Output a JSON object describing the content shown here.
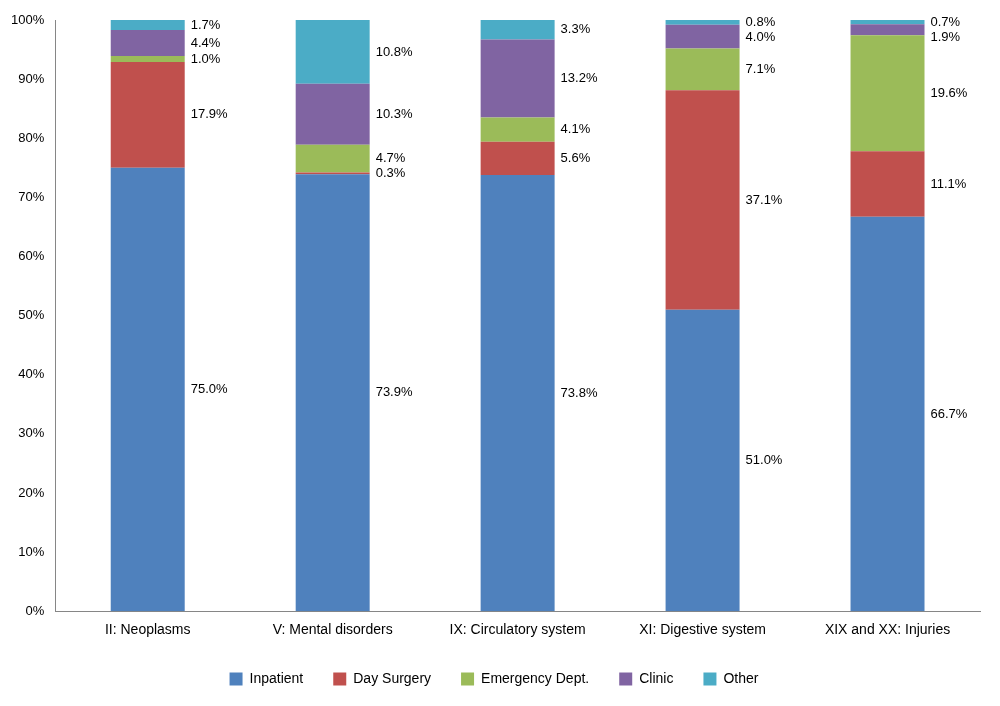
{
  "chart_data": {
    "type": "bar",
    "stacked": true,
    "data_labels": true,
    "legend": "bottom",
    "grid": false,
    "categories": [
      "II: Neoplasms",
      "V: Mental disorders",
      "IX: Circulatory system",
      "XI: Digestive system",
      "XIX and XX: Injuries"
    ],
    "ylim": [
      0,
      100
    ],
    "yticks": [
      {
        "value": 0,
        "label": "0%"
      },
      {
        "value": 10,
        "label": "10%"
      },
      {
        "value": 20,
        "label": "20%"
      },
      {
        "value": 30,
        "label": "30%"
      },
      {
        "value": 40,
        "label": "40%"
      },
      {
        "value": 50,
        "label": "50%"
      },
      {
        "value": 60,
        "label": "60%"
      },
      {
        "value": 70,
        "label": "70%"
      },
      {
        "value": 80,
        "label": "80%"
      },
      {
        "value": 90,
        "label": "90%"
      },
      {
        "value": 100,
        "label": "100%"
      }
    ],
    "series": [
      {
        "name": "Inpatient",
        "color": "#4f81bd",
        "values": [
          75.0,
          73.9,
          73.8,
          51.0,
          66.7
        ],
        "value_labels": [
          "75.0%",
          "73.9%",
          "73.8%",
          "51.0%",
          "66.7%"
        ]
      },
      {
        "name": "Day Surgery",
        "color": "#c0504d",
        "values": [
          17.9,
          0.3,
          5.6,
          37.1,
          11.1
        ],
        "value_labels": [
          "17.9%",
          "0.3%",
          "5.6%",
          "37.1%",
          "11.1%"
        ]
      },
      {
        "name": "Emergency Dept.",
        "color": "#9bbb59",
        "values": [
          1.0,
          4.7,
          4.1,
          7.1,
          19.6
        ],
        "value_labels": [
          "1.0%",
          "4.7%",
          "4.1%",
          "7.1%",
          "19.6%"
        ]
      },
      {
        "name": "Clinic",
        "color": "#8064a2",
        "values": [
          4.4,
          10.3,
          13.2,
          4.0,
          1.9
        ],
        "value_labels": [
          "4.4%",
          "10.3%",
          "13.2%",
          "4.0%",
          "1.9%"
        ]
      },
      {
        "name": "Other",
        "color": "#4bacc6",
        "values": [
          1.7,
          10.8,
          3.3,
          0.8,
          0.7
        ],
        "value_labels": [
          "1.7%",
          "10.8%",
          "3.3%",
          "0.8%",
          "0.7%"
        ]
      }
    ]
  }
}
